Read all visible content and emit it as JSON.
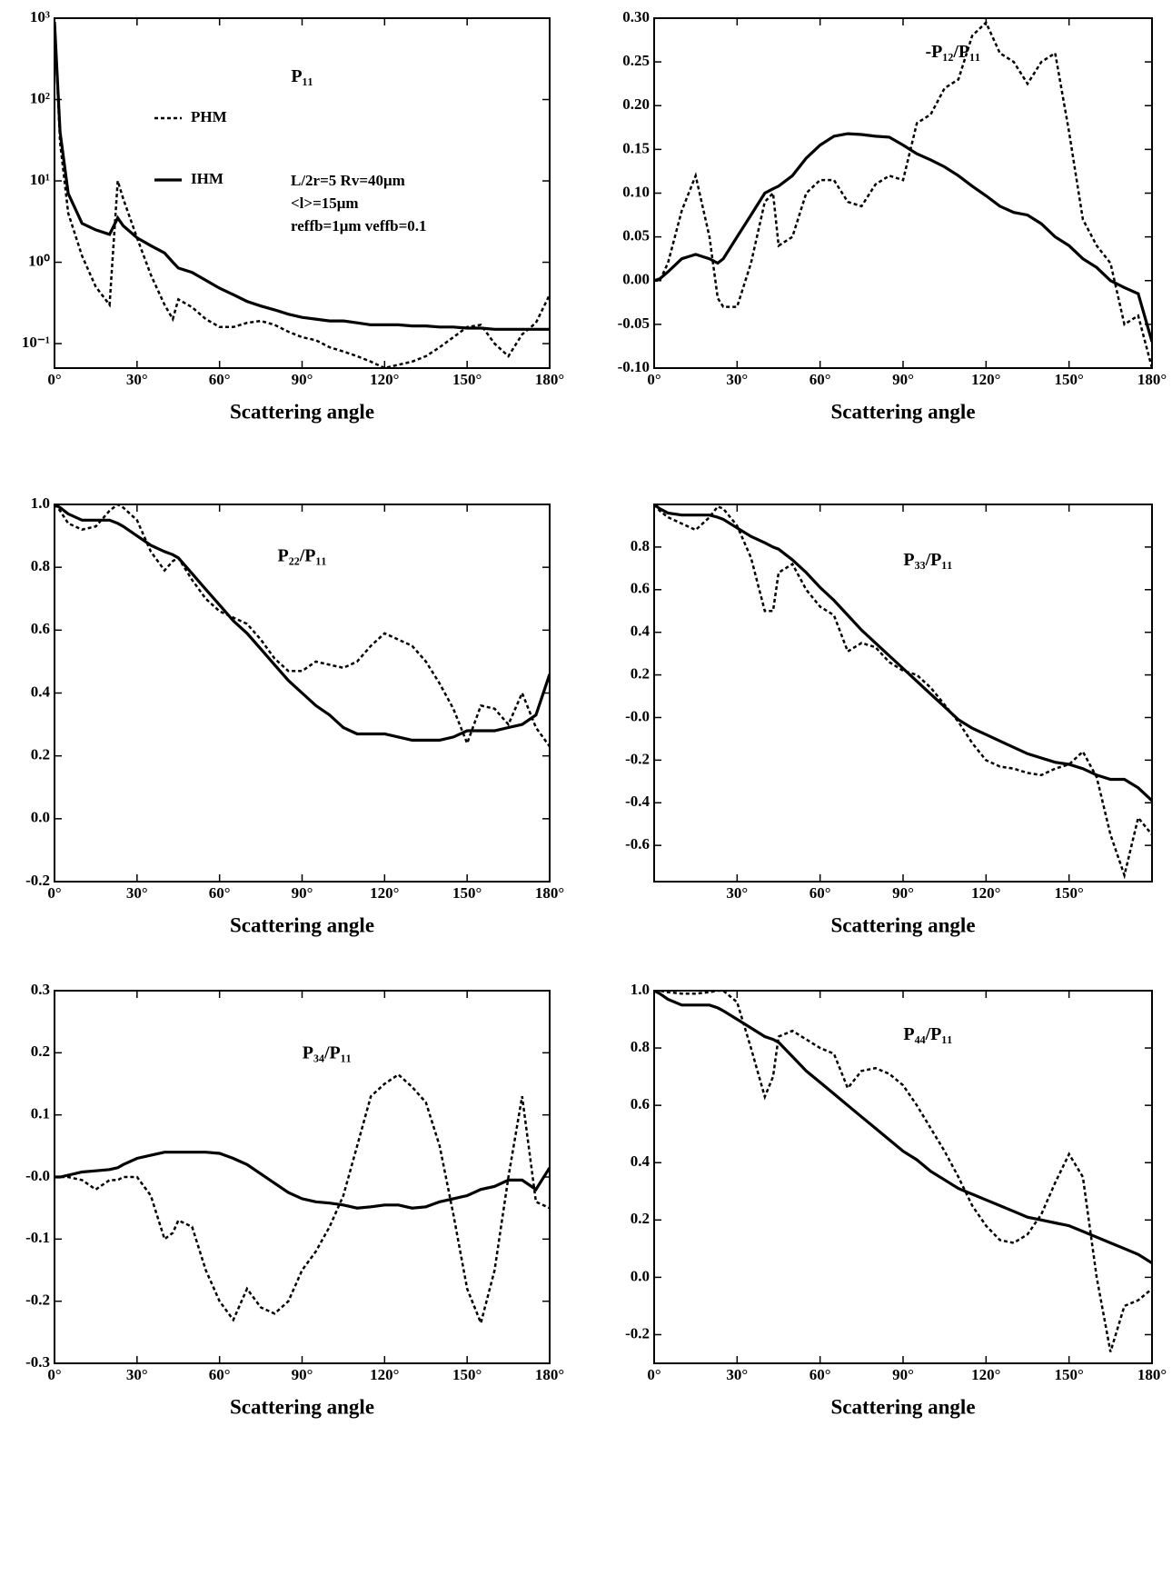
{
  "chart_data": [
    {
      "type": "line",
      "title": "P₁₁",
      "xlabel": "Scattering angle",
      "log_y": true,
      "legend": "upper left",
      "annotations": [
        "L/2r=5 Rv=40μm",
        "<l>=15μm",
        "reffb=1μm veffb=0.1"
      ],
      "xlim": [
        0,
        180
      ],
      "ylim": [
        0.05,
        1000
      ],
      "xticks": [
        {
          "value": 0,
          "label": "0°"
        },
        {
          "value": 30,
          "label": "30°"
        },
        {
          "value": 60,
          "label": "60°"
        },
        {
          "value": 90,
          "label": "90°"
        },
        {
          "value": 120,
          "label": "120°"
        },
        {
          "value": 150,
          "label": "150°"
        },
        {
          "value": 180,
          "label": "180°"
        }
      ],
      "yticks": [
        {
          "value": 1000,
          "label": "10³"
        },
        {
          "value": 100,
          "label": "10²"
        },
        {
          "value": 10,
          "label": "10¹"
        },
        {
          "value": 1,
          "label": "10⁰"
        },
        {
          "value": 0.1,
          "label": "10⁻¹"
        }
      ],
      "x": [
        0,
        2,
        5,
        10,
        15,
        20,
        23,
        25,
        30,
        35,
        40,
        43,
        45,
        50,
        55,
        60,
        65,
        70,
        75,
        80,
        85,
        90,
        95,
        100,
        105,
        110,
        115,
        120,
        125,
        130,
        135,
        140,
        145,
        150,
        155,
        160,
        165,
        170,
        175,
        180
      ],
      "series": [
        {
          "name": "PHM",
          "color": "#000000",
          "style": "dashed",
          "values": [
            900,
            30,
            4,
            1.2,
            0.5,
            0.3,
            10,
            6,
            2,
            0.7,
            0.3,
            0.2,
            0.35,
            0.28,
            0.2,
            0.16,
            0.16,
            0.18,
            0.19,
            0.17,
            0.14,
            0.12,
            0.11,
            0.09,
            0.08,
            0.07,
            0.06,
            0.05,
            0.055,
            0.06,
            0.07,
            0.09,
            0.12,
            0.16,
            0.17,
            0.1,
            0.07,
            0.13,
            0.18,
            0.4
          ]
        },
        {
          "name": "IHM",
          "color": "#000000",
          "style": "solid",
          "values": [
            900,
            40,
            7,
            3,
            2.5,
            2.2,
            3.5,
            2.8,
            2.0,
            1.6,
            1.3,
            1.0,
            0.85,
            0.75,
            0.6,
            0.48,
            0.4,
            0.33,
            0.29,
            0.26,
            0.23,
            0.21,
            0.2,
            0.19,
            0.19,
            0.18,
            0.17,
            0.17,
            0.17,
            0.165,
            0.165,
            0.16,
            0.16,
            0.155,
            0.155,
            0.15,
            0.15,
            0.15,
            0.15,
            0.15
          ]
        }
      ]
    },
    {
      "type": "line",
      "title": "-P₁₂/P₁₁",
      "xlabel": "Scattering angle",
      "xlim": [
        0,
        180
      ],
      "ylim": [
        -0.1,
        0.3
      ],
      "xticks": [
        {
          "value": 0,
          "label": "0°"
        },
        {
          "value": 30,
          "label": "30°"
        },
        {
          "value": 60,
          "label": "60°"
        },
        {
          "value": 90,
          "label": "90°"
        },
        {
          "value": 120,
          "label": "120°"
        },
        {
          "value": 150,
          "label": "150°"
        },
        {
          "value": 180,
          "label": "180°"
        }
      ],
      "yticks": [
        {
          "value": 0.3,
          "label": "0.30"
        },
        0.25,
        {
          "value": 0.2,
          "label": "0.20"
        },
        0.15,
        {
          "value": 0.1,
          "label": "0.10"
        },
        0.05,
        {
          "value": 0,
          "label": "0.00"
        },
        -0.05,
        {
          "value": -0.1,
          "label": "-0.10"
        }
      ],
      "x": [
        0,
        2,
        5,
        10,
        15,
        20,
        23,
        25,
        30,
        35,
        40,
        43,
        45,
        50,
        55,
        60,
        65,
        70,
        75,
        80,
        85,
        90,
        95,
        100,
        105,
        110,
        115,
        120,
        125,
        130,
        135,
        140,
        145,
        150,
        155,
        160,
        165,
        170,
        175,
        180
      ],
      "series": [
        {
          "name": "PHM",
          "color": "#000000",
          "style": "dashed",
          "values": [
            0,
            0,
            0.02,
            0.08,
            0.12,
            0.05,
            -0.02,
            -0.03,
            -0.03,
            0.02,
            0.09,
            0.1,
            0.04,
            0.05,
            0.1,
            0.115,
            0.115,
            0.09,
            0.085,
            0.11,
            0.12,
            0.115,
            0.18,
            0.19,
            0.22,
            0.23,
            0.28,
            0.295,
            0.26,
            0.25,
            0.225,
            0.25,
            0.26,
            0.17,
            0.07,
            0.04,
            0.02,
            -0.05,
            -0.04,
            -0.1
          ]
        },
        {
          "name": "IHM",
          "color": "#000000",
          "style": "solid",
          "values": [
            0,
            0.002,
            0.01,
            0.025,
            0.03,
            0.025,
            0.02,
            0.025,
            0.05,
            0.075,
            0.1,
            0.105,
            0.108,
            0.12,
            0.14,
            0.155,
            0.165,
            0.168,
            0.167,
            0.165,
            0.164,
            0.155,
            0.145,
            0.138,
            0.13,
            0.12,
            0.108,
            0.097,
            0.085,
            0.078,
            0.075,
            0.065,
            0.05,
            0.04,
            0.025,
            0.015,
            0.0,
            -0.008,
            -0.015,
            -0.07
          ]
        }
      ]
    },
    {
      "type": "line",
      "title": "P₂₂/P₁₁",
      "xlabel": "Scattering angle",
      "xlim": [
        0,
        180
      ],
      "ylim": [
        -0.2,
        1.0
      ],
      "xticks": [
        {
          "value": 0,
          "label": "0°"
        },
        {
          "value": 30,
          "label": "30°"
        },
        {
          "value": 60,
          "label": "60°"
        },
        {
          "value": 90,
          "label": "90°"
        },
        {
          "value": 120,
          "label": "120°"
        },
        {
          "value": 150,
          "label": "150°"
        },
        {
          "value": 180,
          "label": "180°"
        }
      ],
      "yticks": [
        {
          "value": 1,
          "label": "1.0"
        },
        0.8,
        0.6,
        0.4,
        0.2,
        {
          "value": 0,
          "label": "0.0"
        },
        -0.2
      ],
      "x": [
        0,
        2,
        5,
        10,
        15,
        20,
        23,
        25,
        30,
        35,
        40,
        43,
        45,
        50,
        55,
        60,
        65,
        70,
        75,
        80,
        85,
        90,
        95,
        100,
        105,
        110,
        115,
        120,
        125,
        130,
        135,
        140,
        145,
        150,
        155,
        160,
        165,
        170,
        175,
        180
      ],
      "series": [
        {
          "name": "PHM",
          "color": "#000000",
          "style": "dashed",
          "values": [
            1,
            0.98,
            0.94,
            0.92,
            0.93,
            0.98,
            1.0,
            0.99,
            0.95,
            0.85,
            0.79,
            0.82,
            0.83,
            0.76,
            0.7,
            0.66,
            0.64,
            0.62,
            0.57,
            0.51,
            0.47,
            0.47,
            0.5,
            0.49,
            0.48,
            0.5,
            0.55,
            0.59,
            0.57,
            0.55,
            0.5,
            0.43,
            0.35,
            0.24,
            0.36,
            0.35,
            0.3,
            0.4,
            0.29,
            0.23
          ]
        },
        {
          "name": "IHM",
          "color": "#000000",
          "style": "solid",
          "values": [
            1,
            0.99,
            0.97,
            0.95,
            0.95,
            0.95,
            0.94,
            0.93,
            0.9,
            0.87,
            0.85,
            0.84,
            0.83,
            0.78,
            0.73,
            0.68,
            0.63,
            0.59,
            0.54,
            0.49,
            0.44,
            0.4,
            0.36,
            0.33,
            0.29,
            0.27,
            0.27,
            0.27,
            0.26,
            0.25,
            0.25,
            0.25,
            0.26,
            0.28,
            0.28,
            0.28,
            0.29,
            0.3,
            0.33,
            0.46
          ]
        }
      ]
    },
    {
      "type": "line",
      "title": "P₃₃/P₁₁",
      "xlabel": "Scattering angle",
      "xlim": [
        0,
        180
      ],
      "ylim": [
        -0.77,
        1.0
      ],
      "xticks": [
        {
          "value": 30,
          "label": "30°"
        },
        {
          "value": 60,
          "label": "60°"
        },
        {
          "value": 90,
          "label": "90°"
        },
        {
          "value": 120,
          "label": "120°"
        },
        {
          "value": 150,
          "label": "150°"
        }
      ],
      "yticks": [
        0.8,
        0.6,
        0.4,
        0.2,
        {
          "value": 0,
          "label": "-0.0"
        },
        -0.2,
        -0.4,
        -0.6
      ],
      "x": [
        0,
        2,
        5,
        10,
        15,
        20,
        23,
        25,
        30,
        35,
        40,
        43,
        45,
        50,
        55,
        60,
        65,
        70,
        75,
        80,
        85,
        90,
        95,
        100,
        105,
        110,
        115,
        120,
        125,
        130,
        135,
        140,
        145,
        150,
        155,
        160,
        165,
        170,
        175,
        180
      ],
      "series": [
        {
          "name": "PHM",
          "color": "#000000",
          "style": "dashed",
          "values": [
            1,
            0.97,
            0.94,
            0.91,
            0.88,
            0.94,
            0.99,
            0.98,
            0.9,
            0.75,
            0.5,
            0.5,
            0.68,
            0.72,
            0.6,
            0.52,
            0.48,
            0.31,
            0.35,
            0.33,
            0.26,
            0.22,
            0.2,
            0.14,
            0.06,
            -0.02,
            -0.12,
            -0.2,
            -0.23,
            -0.24,
            -0.26,
            -0.27,
            -0.24,
            -0.22,
            -0.16,
            -0.28,
            -0.55,
            -0.74,
            -0.47,
            -0.55
          ]
        },
        {
          "name": "IHM",
          "color": "#000000",
          "style": "solid",
          "values": [
            1,
            0.98,
            0.96,
            0.95,
            0.95,
            0.95,
            0.94,
            0.93,
            0.89,
            0.85,
            0.82,
            0.8,
            0.79,
            0.74,
            0.68,
            0.61,
            0.55,
            0.48,
            0.41,
            0.35,
            0.29,
            0.23,
            0.17,
            0.11,
            0.05,
            -0.01,
            -0.05,
            -0.08,
            -0.11,
            -0.14,
            -0.17,
            -0.19,
            -0.21,
            -0.22,
            -0.24,
            -0.27,
            -0.29,
            -0.29,
            -0.33,
            -0.39
          ]
        }
      ]
    },
    {
      "type": "line",
      "title": "P₃₄/P₁₁",
      "xlabel": "Scattering angle",
      "xlim": [
        0,
        180
      ],
      "ylim": [
        -0.3,
        0.3
      ],
      "xticks": [
        {
          "value": 0,
          "label": "0°"
        },
        {
          "value": 30,
          "label": "30°"
        },
        {
          "value": 60,
          "label": "60°"
        },
        {
          "value": 90,
          "label": "90°"
        },
        {
          "value": 120,
          "label": "120°"
        },
        {
          "value": 150,
          "label": "150°"
        },
        {
          "value": 180,
          "label": "180°"
        }
      ],
      "yticks": [
        0.3,
        0.2,
        0.1,
        {
          "value": 0,
          "label": "-0.0"
        },
        -0.1,
        -0.2,
        -0.3
      ],
      "x": [
        0,
        2,
        5,
        10,
        15,
        20,
        23,
        25,
        30,
        35,
        40,
        43,
        45,
        50,
        55,
        60,
        65,
        70,
        75,
        80,
        85,
        90,
        95,
        100,
        105,
        110,
        115,
        120,
        125,
        130,
        135,
        140,
        145,
        150,
        155,
        160,
        165,
        170,
        175,
        180
      ],
      "series": [
        {
          "name": "PHM",
          "color": "#000000",
          "style": "dashed",
          "values": [
            0,
            0,
            0,
            -0.005,
            -0.02,
            -0.005,
            -0.005,
            0,
            0,
            -0.03,
            -0.1,
            -0.09,
            -0.07,
            -0.08,
            -0.15,
            -0.2,
            -0.23,
            -0.18,
            -0.21,
            -0.22,
            -0.2,
            -0.15,
            -0.12,
            -0.08,
            -0.03,
            0.05,
            0.13,
            0.15,
            0.165,
            0.145,
            0.12,
            0.05,
            -0.06,
            -0.18,
            -0.235,
            -0.15,
            0,
            0.13,
            -0.04,
            -0.05
          ]
        },
        {
          "name": "IHM",
          "color": "#000000",
          "style": "solid",
          "values": [
            0,
            0,
            0.003,
            0.008,
            0.01,
            0.012,
            0.015,
            0.02,
            0.03,
            0.035,
            0.04,
            0.04,
            0.04,
            0.04,
            0.04,
            0.038,
            0.03,
            0.02,
            0.005,
            -0.01,
            -0.025,
            -0.035,
            -0.04,
            -0.042,
            -0.045,
            -0.05,
            -0.048,
            -0.045,
            -0.045,
            -0.05,
            -0.048,
            -0.04,
            -0.035,
            -0.03,
            -0.02,
            -0.015,
            -0.005,
            -0.005,
            -0.02,
            0.015
          ]
        }
      ]
    },
    {
      "type": "line",
      "title": "P₄₄/P₁₁",
      "xlabel": "Scattering angle",
      "xlim": [
        0,
        180
      ],
      "ylim": [
        -0.3,
        1.0
      ],
      "xticks": [
        {
          "value": 0,
          "label": "0°"
        },
        {
          "value": 30,
          "label": "30°"
        },
        {
          "value": 60,
          "label": "60°"
        },
        {
          "value": 90,
          "label": "90°"
        },
        {
          "value": 120,
          "label": "120°"
        },
        {
          "value": 150,
          "label": "150°"
        },
        {
          "value": 180,
          "label": "180°"
        }
      ],
      "yticks": [
        {
          "value": 1,
          "label": "1.0"
        },
        0.8,
        0.6,
        0.4,
        0.2,
        {
          "value": 0,
          "label": "0.0"
        },
        -0.2
      ],
      "x": [
        0,
        2,
        5,
        10,
        15,
        20,
        23,
        25,
        30,
        35,
        40,
        43,
        45,
        50,
        55,
        60,
        65,
        70,
        75,
        80,
        85,
        90,
        95,
        100,
        105,
        110,
        115,
        120,
        125,
        130,
        135,
        140,
        145,
        150,
        155,
        160,
        165,
        170,
        175,
        180
      ],
      "series": [
        {
          "name": "PHM",
          "color": "#000000",
          "style": "dashed",
          "values": [
            1,
            1,
            0.995,
            0.99,
            0.99,
            0.995,
            1.0,
            1.0,
            0.96,
            0.8,
            0.63,
            0.7,
            0.84,
            0.86,
            0.83,
            0.8,
            0.78,
            0.66,
            0.72,
            0.73,
            0.71,
            0.67,
            0.6,
            0.52,
            0.44,
            0.35,
            0.25,
            0.18,
            0.13,
            0.12,
            0.15,
            0.22,
            0.33,
            0.43,
            0.35,
            0,
            -0.26,
            -0.1,
            -0.08,
            -0.04
          ]
        },
        {
          "name": "IHM",
          "color": "#000000",
          "style": "solid",
          "values": [
            1,
            0.99,
            0.97,
            0.95,
            0.95,
            0.95,
            0.94,
            0.93,
            0.9,
            0.87,
            0.84,
            0.83,
            0.82,
            0.77,
            0.72,
            0.68,
            0.64,
            0.6,
            0.56,
            0.52,
            0.48,
            0.44,
            0.41,
            0.37,
            0.34,
            0.31,
            0.29,
            0.27,
            0.25,
            0.23,
            0.21,
            0.2,
            0.19,
            0.18,
            0.16,
            0.14,
            0.12,
            0.1,
            0.08,
            0.05
          ]
        }
      ]
    }
  ]
}
